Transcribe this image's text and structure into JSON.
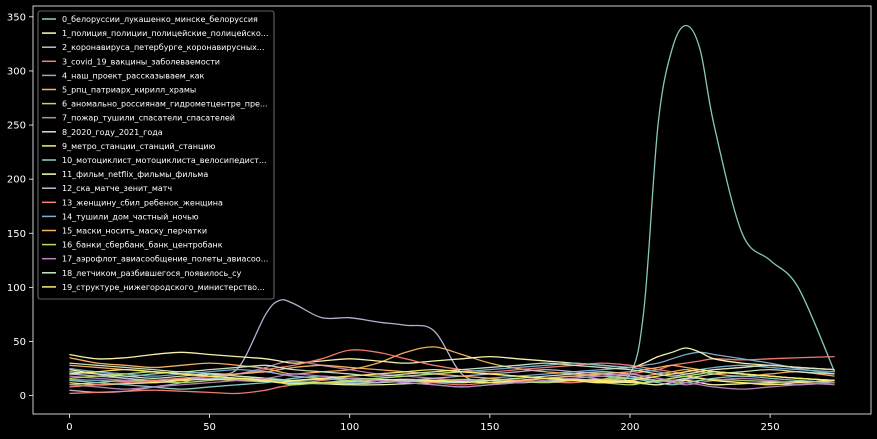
{
  "chart_data": {
    "type": "line",
    "title": "",
    "xlabel": "",
    "ylabel": "",
    "xlim": [
      -13,
      286
    ],
    "ylim": [
      -17,
      360
    ],
    "xticks": [
      0,
      50,
      100,
      150,
      200,
      250
    ],
    "yticks": [
      0,
      50,
      100,
      150,
      200,
      250,
      300,
      350
    ],
    "grid": false,
    "legend_position": "top-left",
    "x": [
      0,
      10,
      20,
      30,
      40,
      50,
      60,
      70,
      75,
      80,
      90,
      100,
      110,
      120,
      130,
      140,
      150,
      160,
      170,
      180,
      190,
      200,
      205,
      210,
      215,
      220,
      225,
      230,
      240,
      250,
      260,
      273
    ],
    "series": [
      {
        "name": "0_белоруссии_лукашенко_минске_белоруссия",
        "color": "#8dd3c7",
        "values": [
          20,
          22,
          18,
          20,
          22,
          20,
          18,
          16,
          14,
          12,
          12,
          11,
          12,
          14,
          13,
          12,
          14,
          12,
          13,
          14,
          12,
          20,
          80,
          250,
          320,
          342,
          320,
          250,
          150,
          125,
          100,
          22
        ]
      },
      {
        "name": "1_полиция_полиции_полицейские_полицейско...",
        "color": "#feffb3",
        "values": [
          24,
          20,
          16,
          14,
          15,
          16,
          15,
          14,
          13,
          12,
          11,
          10,
          10,
          11,
          12,
          14,
          12,
          12,
          13,
          14,
          13,
          12,
          11,
          10,
          12,
          14,
          12,
          10,
          11,
          12,
          13,
          12
        ]
      },
      {
        "name": "2_коронавируса_петербурге_коронавирусных...",
        "color": "#bfbbd9",
        "values": [
          5,
          3,
          4,
          8,
          12,
          20,
          25,
          75,
          88,
          85,
          72,
          72,
          68,
          65,
          60,
          20,
          12,
          14,
          16,
          18,
          15,
          14,
          12,
          13,
          14,
          15,
          16,
          14,
          12,
          11,
          10,
          12
        ]
      },
      {
        "name": "3_covid_19_вакцины_заболеваемости",
        "color": "#fa8174",
        "values": [
          2,
          3,
          4,
          5,
          4,
          3,
          2,
          5,
          8,
          10,
          14,
          16,
          15,
          14,
          12,
          10,
          12,
          14,
          13,
          12,
          15,
          20,
          22,
          24,
          28,
          30,
          32,
          34,
          33,
          34,
          35,
          36
        ]
      },
      {
        "name": "4_наш_проект_рассказываем_как",
        "color": "#81b1d2",
        "values": [
          15,
          14,
          13,
          12,
          14,
          16,
          15,
          14,
          13,
          12,
          11,
          12,
          14,
          15,
          14,
          13,
          16,
          18,
          20,
          22,
          24,
          26,
          28,
          30,
          34,
          38,
          40,
          38,
          34,
          30,
          25,
          20
        ]
      },
      {
        "name": "5_рпц_патриарх_кирилл_храмы",
        "color": "#fdb462",
        "values": [
          35,
          30,
          28,
          26,
          28,
          30,
          28,
          25,
          22,
          20,
          22,
          24,
          30,
          40,
          45,
          38,
          30,
          25,
          22,
          20,
          18,
          16,
          18,
          20,
          22,
          24,
          22,
          20,
          18,
          20,
          22,
          18
        ]
      },
      {
        "name": "6_аномально_россиянам_гидрометцентре_пре...",
        "color": "#b3de69",
        "values": [
          10,
          12,
          14,
          13,
          12,
          14,
          16,
          15,
          14,
          13,
          12,
          11,
          12,
          13,
          14,
          15,
          14,
          13,
          12,
          14,
          15,
          16,
          15,
          14,
          13,
          12,
          14,
          15,
          14,
          13,
          12,
          14
        ]
      },
      {
        "name": "7_пожар_тушили_спасатели_спасателей",
        "color": "#bc82bd",
        "values": [
          18,
          16,
          14,
          12,
          14,
          16,
          20,
          26,
          30,
          32,
          28,
          24,
          20,
          18,
          16,
          14,
          12,
          14,
          16,
          18,
          20,
          18,
          16,
          14,
          12,
          10,
          12,
          14,
          16,
          14,
          12,
          10
        ]
      },
      {
        "name": "8_2020_году_2021_года",
        "color": "#ccebc4",
        "values": [
          22,
          20,
          18,
          16,
          18,
          20,
          18,
          16,
          15,
          14,
          15,
          16,
          15,
          14,
          13,
          12,
          14,
          16,
          18,
          20,
          22,
          20,
          18,
          16,
          14,
          16,
          18,
          20,
          22,
          24,
          22,
          20
        ]
      },
      {
        "name": "9_метро_станции_станций_станцию",
        "color": "#ffed6f",
        "values": [
          12,
          10,
          11,
          12,
          14,
          15,
          14,
          13,
          12,
          11,
          12,
          13,
          14,
          15,
          14,
          13,
          12,
          14,
          16,
          15,
          14,
          13,
          12,
          14,
          16,
          18,
          16,
          14,
          12,
          10,
          12,
          14
        ]
      },
      {
        "name": "10_мотоциклист_мотоциклиста_велосипедист...",
        "color": "#8dd3c7",
        "values": [
          14,
          12,
          10,
          8,
          6,
          8,
          10,
          12,
          14,
          16,
          18,
          16,
          14,
          12,
          10,
          8,
          10,
          12,
          14,
          16,
          18,
          16,
          14,
          12,
          10,
          12,
          14,
          16,
          18,
          16,
          14,
          12
        ]
      },
      {
        "name": "11_фильм_netflix_фильмы_фильма",
        "color": "#feffb3",
        "values": [
          38,
          34,
          35,
          38,
          40,
          38,
          36,
          34,
          32,
          30,
          32,
          34,
          32,
          30,
          32,
          34,
          36,
          34,
          32,
          30,
          28,
          26,
          30,
          36,
          40,
          44,
          40,
          34,
          30,
          28,
          26,
          24
        ]
      },
      {
        "name": "12_ска_матче_зенит_матч",
        "color": "#bfbbd9",
        "values": [
          20,
          18,
          16,
          14,
          16,
          18,
          20,
          22,
          20,
          18,
          16,
          14,
          12,
          14,
          16,
          18,
          20,
          22,
          24,
          22,
          20,
          18,
          16,
          14,
          16,
          18,
          20,
          22,
          20,
          18,
          16,
          14
        ]
      },
      {
        "name": "13_женщину_сбил_ребенок_женщина",
        "color": "#fa8174",
        "values": [
          8,
          10,
          12,
          14,
          16,
          18,
          20,
          24,
          26,
          28,
          34,
          42,
          40,
          34,
          28,
          24,
          22,
          24,
          26,
          28,
          30,
          28,
          26,
          24,
          22,
          20,
          22,
          24,
          26,
          28,
          26,
          24
        ]
      },
      {
        "name": "14_тушили_дом_частный_ночью",
        "color": "#81b1d2",
        "values": [
          25,
          22,
          20,
          18,
          20,
          22,
          24,
          22,
          20,
          18,
          16,
          14,
          16,
          18,
          20,
          22,
          24,
          26,
          28,
          30,
          28,
          26,
          24,
          22,
          20,
          22,
          24,
          26,
          28,
          26,
          24,
          22
        ]
      },
      {
        "name": "15_маски_носить_маску_перчатки",
        "color": "#fdb462",
        "values": [
          28,
          26,
          24,
          22,
          20,
          18,
          20,
          22,
          24,
          26,
          28,
          26,
          24,
          22,
          20,
          18,
          16,
          14,
          16,
          18,
          20,
          22,
          24,
          26,
          28,
          26,
          24,
          22,
          20,
          18,
          16,
          14
        ]
      },
      {
        "name": "16_банки_сбербанк_банк_центробанк",
        "color": "#b3de69",
        "values": [
          16,
          18,
          20,
          22,
          20,
          18,
          16,
          14,
          12,
          10,
          12,
          14,
          16,
          18,
          20,
          22,
          20,
          18,
          16,
          14,
          12,
          10,
          12,
          14,
          16,
          18,
          20,
          22,
          20,
          18,
          16,
          14
        ]
      },
      {
        "name": "17_аэрофлот_авиасообщение_полеты_авиасоо...",
        "color": "#bc82bd",
        "values": [
          10,
          8,
          6,
          8,
          10,
          12,
          14,
          16,
          18,
          20,
          18,
          16,
          14,
          12,
          10,
          8,
          10,
          12,
          14,
          16,
          18,
          20,
          18,
          16,
          14,
          12,
          10,
          8,
          6,
          8,
          10,
          12
        ]
      },
      {
        "name": "18_летчиком_разбившегося_появилось_су",
        "color": "#ccebc4",
        "values": [
          30,
          28,
          26,
          24,
          22,
          24,
          26,
          28,
          26,
          24,
          22,
          20,
          18,
          20,
          22,
          24,
          26,
          28,
          30,
          28,
          26,
          24,
          22,
          20,
          18,
          20,
          22,
          24,
          26,
          28,
          26,
          24
        ]
      },
      {
        "name": "19_структуре_нижегородского_министерство...",
        "color": "#ffed6f",
        "values": [
          20,
          22,
          24,
          22,
          20,
          18,
          16,
          14,
          12,
          14,
          16,
          18,
          20,
          22,
          24,
          22,
          20,
          18,
          16,
          14,
          12,
          14,
          16,
          18,
          20,
          22,
          24,
          22,
          20,
          18,
          16,
          14
        ]
      }
    ]
  }
}
